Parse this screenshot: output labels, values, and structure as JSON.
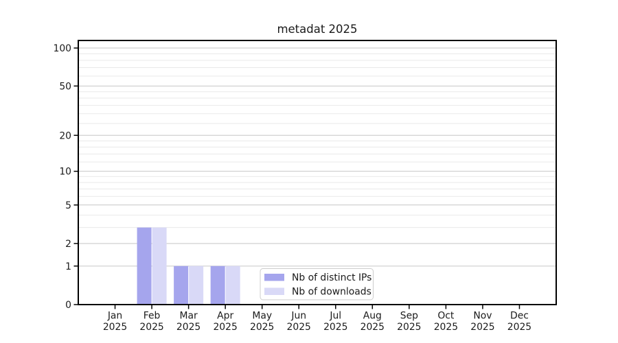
{
  "chart_data": {
    "type": "bar",
    "title": "metadat 2025",
    "categories": [
      "Jan",
      "Feb",
      "Mar",
      "Apr",
      "May",
      "Jun",
      "Jul",
      "Aug",
      "Sep",
      "Oct",
      "Nov",
      "Dec"
    ],
    "category_year": "2025",
    "series": [
      {
        "name": "Nb of distinct IPs",
        "color": "#a5a5ed",
        "values": [
          0,
          3,
          1,
          1,
          0,
          0,
          0,
          0,
          0,
          0,
          0,
          0
        ]
      },
      {
        "name": "Nb of downloads",
        "color": "#d9d9f7",
        "values": [
          0,
          3,
          1,
          1,
          0,
          0,
          0,
          0,
          0,
          0,
          0,
          0
        ]
      }
    ],
    "xlabel": "",
    "ylabel": "",
    "yscale": "log1p",
    "y_major_ticks": [
      0,
      1,
      2,
      5,
      10,
      20,
      50,
      100
    ],
    "y_minor_ticks": [
      3,
      4,
      6,
      7,
      8,
      9,
      12,
      14,
      16,
      18,
      25,
      30,
      35,
      40,
      45,
      60,
      70,
      80,
      90
    ],
    "ylim": [
      0,
      115
    ],
    "grid": "on",
    "legend": {
      "position": "lower center",
      "entries": [
        "Nb of distinct IPs",
        "Nb of downloads"
      ]
    },
    "colors": {
      "background": "#ffffff",
      "spine": "#000000",
      "major_grid": "#c6c6c6",
      "minor_grid": "#e9e9e9",
      "legend_border": "#cccccc"
    }
  }
}
